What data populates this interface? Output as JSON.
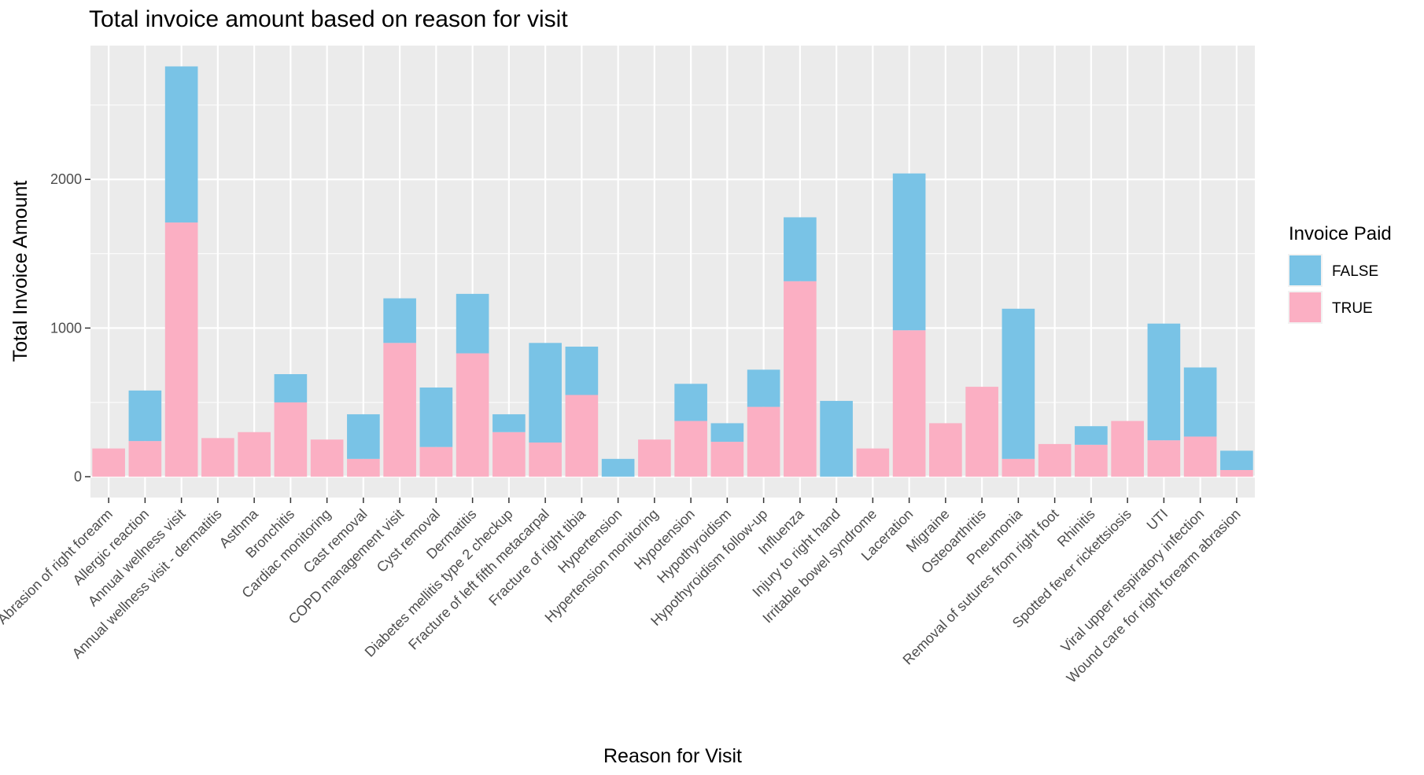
{
  "chart_data": {
    "type": "bar",
    "stacked": true,
    "title": "Total invoice amount based on reason for visit",
    "xlabel": "Reason for Visit",
    "ylabel": "Total Invoice Amount",
    "ylim": [
      -140,
      2900
    ],
    "yticks": [
      0,
      1000,
      2000
    ],
    "grid": true,
    "legend": {
      "title": "Invoice Paid",
      "placement": "right"
    },
    "categories": [
      "Abrasion of right forearm",
      "Allergic reaction",
      "Annual wellness visit",
      "Annual wellness visit - dermatitis",
      "Asthma",
      "Bronchitis",
      "Cardiac monitoring",
      "Cast removal",
      "COPD management visit",
      "Cyst removal",
      "Dermatitis",
      "Diabetes mellitis type 2 checkup",
      "Fracture of left fifth metacarpal",
      "Fracture of right tibia",
      "Hypertension",
      "Hypertension monitoring",
      "Hypotension",
      "Hypothyroidism",
      "Hypothyroidism follow-up",
      "Influenza",
      "Injury to right hand",
      "Irritable bowel syndrome",
      "Laceration",
      "Migraine",
      "Osteoarthritis",
      "Pneumonia",
      "Removal of sutures from right foot",
      "Rhinitis",
      "Spotted fever rickettsiosis",
      "UTI",
      "Viral upper respiratory infection",
      "Wound care for right forearm abrasion"
    ],
    "series": [
      {
        "name": "TRUE",
        "color": "#fbafc3",
        "values": [
          190,
          240,
          1710,
          260,
          300,
          500,
          250,
          120,
          900,
          200,
          830,
          300,
          230,
          550,
          0,
          250,
          375,
          235,
          470,
          1315,
          0,
          190,
          985,
          360,
          605,
          120,
          220,
          215,
          375,
          245,
          270,
          45
        ]
      },
      {
        "name": "FALSE",
        "color": "#79c3e6",
        "values": [
          0,
          340,
          1050,
          0,
          0,
          190,
          0,
          300,
          300,
          400,
          400,
          120,
          670,
          325,
          120,
          0,
          250,
          125,
          250,
          430,
          510,
          0,
          1055,
          0,
          0,
          1010,
          0,
          125,
          0,
          785,
          465,
          130
        ]
      }
    ]
  }
}
